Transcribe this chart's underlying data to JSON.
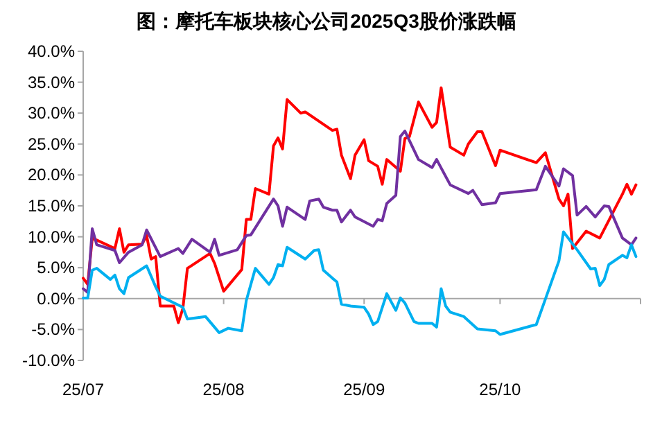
{
  "chart_data": {
    "type": "line",
    "title": "图：摩托车板块核心公司2025Q3股价涨跌幅",
    "xlim": [
      "2025-07-01",
      "2025-11-01"
    ],
    "xticks": [
      {
        "value": "2025-07-01",
        "label": "25/07"
      },
      {
        "value": "2025-08-01",
        "label": "25/08"
      },
      {
        "value": "2025-09-01",
        "label": "25/09"
      },
      {
        "value": "2025-10-01",
        "label": "25/10"
      }
    ],
    "ylim": [
      -10,
      40
    ],
    "yticks": [
      {
        "value": 40,
        "label": "40.0%"
      },
      {
        "value": 35,
        "label": "35.0%"
      },
      {
        "value": 30,
        "label": "30.0%"
      },
      {
        "value": 25,
        "label": "25.0%"
      },
      {
        "value": 20,
        "label": "20.0%"
      },
      {
        "value": 15,
        "label": "15.0%"
      },
      {
        "value": 10,
        "label": "10.0%"
      },
      {
        "value": 5,
        "label": "5.0%"
      },
      {
        "value": 0,
        "label": "0.0%"
      },
      {
        "value": -5,
        "label": "-5.0%"
      },
      {
        "value": -10,
        "label": "-10.0%"
      }
    ],
    "marker": "none",
    "line_style": "solid",
    "series": [
      {
        "color": "#ff0000",
        "x": [
          "2025-07-01",
          "2025-07-02",
          "2025-07-03",
          "2025-07-08",
          "2025-07-09",
          "2025-07-10",
          "2025-07-11",
          "2025-07-14",
          "2025-07-15",
          "2025-07-16",
          "2025-07-17",
          "2025-07-18",
          "2025-07-21",
          "2025-07-22",
          "2025-07-23",
          "2025-07-24",
          "2025-07-29",
          "2025-07-30",
          "2025-08-01",
          "2025-08-05",
          "2025-08-06",
          "2025-08-07",
          "2025-08-08",
          "2025-08-11",
          "2025-08-12",
          "2025-08-13",
          "2025-08-14",
          "2025-08-15",
          "2025-08-18",
          "2025-08-19",
          "2025-08-25",
          "2025-08-26",
          "2025-08-27",
          "2025-08-29",
          "2025-08-30",
          "2025-09-01",
          "2025-09-02",
          "2025-09-04",
          "2025-09-05",
          "2025-09-06",
          "2025-09-09",
          "2025-09-10",
          "2025-09-11",
          "2025-09-13",
          "2025-09-16",
          "2025-09-17",
          "2025-09-18",
          "2025-09-20",
          "2025-09-23",
          "2025-09-24",
          "2025-09-26",
          "2025-09-27",
          "2025-09-30",
          "2025-10-01",
          "2025-10-09",
          "2025-10-11",
          "2025-10-14",
          "2025-10-15",
          "2025-10-16",
          "2025-10-17",
          "2025-10-20",
          "2025-10-23",
          "2025-10-28",
          "2025-10-29",
          "2025-10-30",
          "2025-10-31"
        ],
        "values": [
          3.3,
          2.3,
          9.8,
          8.1,
          11.3,
          7.5,
          8.7,
          8.8,
          10.2,
          6.4,
          6.8,
          -1.2,
          -1.2,
          -3.9,
          -1.6,
          4.9,
          7.3,
          5.7,
          1.2,
          4.7,
          12.8,
          12.8,
          17.8,
          16.9,
          24.7,
          26.0,
          24.2,
          32.2,
          30.0,
          30.2,
          27.2,
          27.4,
          23.2,
          19.4,
          23.2,
          25.7,
          22.3,
          21.4,
          18.5,
          22.5,
          20.6,
          25.9,
          26.2,
          31.8,
          27.7,
          28.5,
          34.1,
          24.5,
          23.2,
          25.0,
          27.0,
          27.0,
          21.5,
          24.0,
          22.0,
          23.6,
          16.1,
          15.0,
          16.9,
          8.1,
          10.9,
          9.8,
          16.9,
          18.5,
          16.9,
          18.4
        ]
      },
      {
        "color": "#7030a0",
        "x": [
          "2025-07-01",
          "2025-07-02",
          "2025-07-03",
          "2025-07-04",
          "2025-07-08",
          "2025-07-09",
          "2025-07-11",
          "2025-07-14",
          "2025-07-15",
          "2025-07-18",
          "2025-07-22",
          "2025-07-23",
          "2025-07-25",
          "2025-07-29",
          "2025-07-30",
          "2025-07-31",
          "2025-08-04",
          "2025-08-06",
          "2025-08-07",
          "2025-08-12",
          "2025-08-13",
          "2025-08-14",
          "2025-08-15",
          "2025-08-19",
          "2025-08-20",
          "2025-08-22",
          "2025-08-23",
          "2025-08-25",
          "2025-08-26",
          "2025-08-27",
          "2025-08-29",
          "2025-08-30",
          "2025-09-03",
          "2025-09-04",
          "2025-09-05",
          "2025-09-06",
          "2025-09-08",
          "2025-09-09",
          "2025-09-10",
          "2025-09-13",
          "2025-09-16",
          "2025-09-17",
          "2025-09-20",
          "2025-09-24",
          "2025-09-25",
          "2025-09-27",
          "2025-09-30",
          "2025-10-01",
          "2025-10-09",
          "2025-10-11",
          "2025-10-14",
          "2025-10-15",
          "2025-10-17",
          "2025-10-18",
          "2025-10-20",
          "2025-10-22",
          "2025-10-24",
          "2025-10-25",
          "2025-10-28",
          "2025-10-30",
          "2025-10-31"
        ],
        "values": [
          1.6,
          1.0,
          11.3,
          8.7,
          7.8,
          5.8,
          7.5,
          8.7,
          11.1,
          6.8,
          8.1,
          7.3,
          9.6,
          7.5,
          9.6,
          7.0,
          7.9,
          10.2,
          10.3,
          16.1,
          15.0,
          11.7,
          14.8,
          12.8,
          15.8,
          16.1,
          14.8,
          14.3,
          14.3,
          12.4,
          14.3,
          13.2,
          11.7,
          12.8,
          12.6,
          15.4,
          16.7,
          26.2,
          27.1,
          22.5,
          21.2,
          22.5,
          18.4,
          17.0,
          17.5,
          15.2,
          15.5,
          17.0,
          17.6,
          21.4,
          18.2,
          21.0,
          19.9,
          13.5,
          14.9,
          13.2,
          15.0,
          14.9,
          9.8,
          8.7,
          9.8
        ]
      },
      {
        "color": "#00b0f0",
        "x": [
          "2025-07-01",
          "2025-07-02",
          "2025-07-03",
          "2025-07-04",
          "2025-07-07",
          "2025-07-08",
          "2025-07-09",
          "2025-07-10",
          "2025-07-11",
          "2025-07-15",
          "2025-07-17",
          "2025-07-18",
          "2025-07-23",
          "2025-07-24",
          "2025-07-28",
          "2025-07-31",
          "2025-08-02",
          "2025-08-05",
          "2025-08-06",
          "2025-08-08",
          "2025-08-11",
          "2025-08-12",
          "2025-08-13",
          "2025-08-14",
          "2025-08-15",
          "2025-08-19",
          "2025-08-21",
          "2025-08-22",
          "2025-08-23",
          "2025-08-25",
          "2025-08-26",
          "2025-08-27",
          "2025-08-29",
          "2025-09-01",
          "2025-09-02",
          "2025-09-03",
          "2025-09-04",
          "2025-09-06",
          "2025-09-08",
          "2025-09-09",
          "2025-09-10",
          "2025-09-12",
          "2025-09-13",
          "2025-09-16",
          "2025-09-17",
          "2025-09-18",
          "2025-09-19",
          "2025-09-20",
          "2025-09-23",
          "2025-09-26",
          "2025-09-30",
          "2025-10-01",
          "2025-10-09",
          "2025-10-11",
          "2025-10-14",
          "2025-10-15",
          "2025-10-18",
          "2025-10-21",
          "2025-10-22",
          "2025-10-23",
          "2025-10-24",
          "2025-10-25",
          "2025-10-28",
          "2025-10-29",
          "2025-10-30",
          "2025-10-31"
        ],
        "values": [
          0.1,
          0.1,
          4.6,
          4.9,
          3.1,
          3.8,
          1.6,
          0.8,
          3.4,
          5.3,
          1.9,
          0.4,
          -1.4,
          -3.3,
          -2.9,
          -5.5,
          -4.8,
          -5.2,
          -0.3,
          4.9,
          2.3,
          3.4,
          5.5,
          5.3,
          8.3,
          6.4,
          7.8,
          7.9,
          4.6,
          3.3,
          2.7,
          -0.9,
          -1.2,
          -1.4,
          -2.5,
          -4.2,
          -3.7,
          0.8,
          -1.9,
          0.1,
          -0.7,
          -3.7,
          -4.0,
          -4.0,
          -4.6,
          1.6,
          -1.2,
          -2.2,
          -2.9,
          -4.9,
          -5.2,
          -5.8,
          -4.2,
          -0.1,
          6.1,
          10.8,
          7.9,
          4.8,
          4.9,
          2.1,
          3.1,
          5.5,
          7.0,
          6.6,
          8.7,
          6.8
        ]
      }
    ]
  }
}
